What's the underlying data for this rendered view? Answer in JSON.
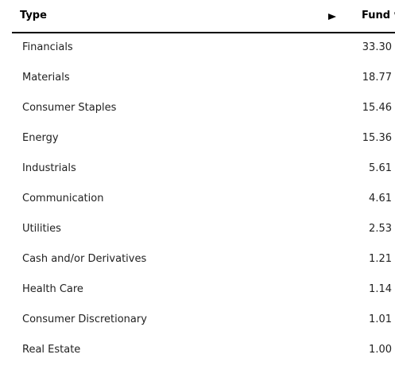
{
  "table": {
    "header": [
      "Type",
      "Fund weight"
    ],
    "rows": [
      [
        "Financials",
        "33.30"
      ],
      [
        "Materials",
        "18.77"
      ],
      [
        "Consumer Staples",
        "15.46"
      ],
      [
        "Energy",
        "15.36"
      ],
      [
        "Industrials",
        "5.61"
      ],
      [
        "Communication",
        "4.61"
      ],
      [
        "Utilities",
        "2.53"
      ],
      [
        "Cash and/or Derivatives",
        "1.21"
      ],
      [
        "Health Care",
        "1.14"
      ],
      [
        "Consumer Discretionary",
        "1.01"
      ],
      [
        "Real Estate",
        "1.00"
      ]
    ]
  }
}
